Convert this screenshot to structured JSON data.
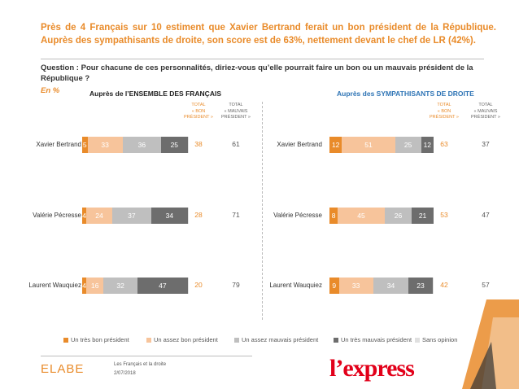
{
  "header": {
    "headline": "Près de 4 Français sur 10 estiment que Xavier Bertrand ferait un bon président de la République. Auprès des sympathisants de droite, son score est de 63%, nettement devant le chef de LR (42%).",
    "question": "Question : Pour chacune de ces personnalités, diriez-vous qu’elle pourrait faire un bon ou un mauvais président de la République ?",
    "unit": "En %"
  },
  "colors": {
    "tres_bon": "#E98B2A",
    "assez_bon": "#F7C49B",
    "assez_mauvais": "#BFBFBF",
    "tres_mauvais": "#6D6D6D",
    "sans_opinion": "#E0E0E0",
    "accent": "#E98B2A",
    "blue": "#2E74B5"
  },
  "column_headers": {
    "bon": [
      "TOTAL",
      "« BON",
      "PRÉSIDENT »"
    ],
    "mauvais": [
      "TOTAL",
      "« MAUVAIS",
      "PRÉSIDENT »"
    ]
  },
  "chart_data": [
    {
      "type": "bar",
      "stacked": true,
      "orientation": "horizontal",
      "title": "Auprès de l’ENSEMBLE DES FRANÇAIS",
      "categories": [
        "Xavier Bertrand",
        "Valérie Pécresse",
        "Laurent Wauquiez"
      ],
      "series": [
        {
          "name": "Un très bon président",
          "values": [
            5,
            4,
            4
          ]
        },
        {
          "name": "Un assez bon président",
          "values": [
            33,
            24,
            16
          ]
        },
        {
          "name": "Un assez mauvais président",
          "values": [
            36,
            37,
            32
          ]
        },
        {
          "name": "Un très mauvais président",
          "values": [
            25,
            34,
            47
          ]
        },
        {
          "name": "Sans opinion",
          "values": [
            1,
            1,
            1
          ]
        }
      ],
      "total_bon": [
        38,
        28,
        20
      ],
      "total_mauvais": [
        61,
        71,
        79
      ]
    },
    {
      "type": "bar",
      "stacked": true,
      "orientation": "horizontal",
      "title": "Auprès des SYMPATHISANTS DE DROITE",
      "categories": [
        "Xavier Bertrand",
        "Valérie Pécresse",
        "Laurent Wauquiez"
      ],
      "series": [
        {
          "name": "Un très bon président",
          "values": [
            12,
            8,
            9
          ]
        },
        {
          "name": "Un assez bon président",
          "values": [
            51,
            45,
            33
          ]
        },
        {
          "name": "Un assez mauvais président",
          "values": [
            25,
            26,
            34
          ]
        },
        {
          "name": "Un très mauvais président",
          "values": [
            12,
            21,
            23
          ]
        },
        {
          "name": "Sans opinion",
          "values": [
            0,
            0,
            1
          ]
        }
      ],
      "total_bon": [
        63,
        53,
        42
      ],
      "total_mauvais": [
        37,
        47,
        57
      ]
    }
  ],
  "legend": [
    "Un très bon président",
    "Un assez bon président",
    "Un assez mauvais président",
    "Un très mauvais président",
    "Sans opinion"
  ],
  "footer": {
    "brand": "ELABE",
    "line1": "Les Français et la droite",
    "line2": "2/07/2018",
    "partner": "l’express"
  }
}
